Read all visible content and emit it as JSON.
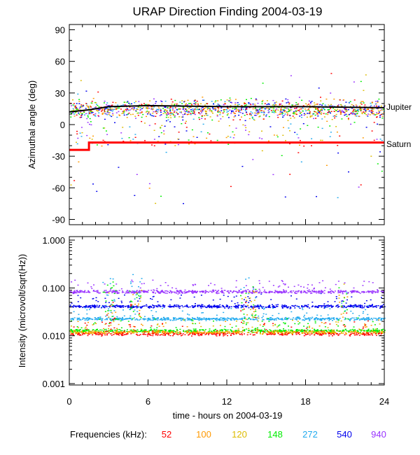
{
  "title": "URAP Direction Finding  2004-03-19",
  "xlabel": "time - hours on 2004-03-19",
  "legend_label": "Frequencies (kHz):",
  "frequencies": [
    {
      "label": "52",
      "color": "#ff0000"
    },
    {
      "label": "100",
      "color": "#ff9900"
    },
    {
      "label": "120",
      "color": "#ddbb00"
    },
    {
      "label": "148",
      "color": "#00ee00"
    },
    {
      "label": "272",
      "color": "#22aaee"
    },
    {
      "label": "540",
      "color": "#0000ee"
    },
    {
      "label": "940",
      "color": "#9933ff"
    }
  ],
  "chart_data": [
    {
      "type": "scatter",
      "ylabel": "Azimuthal angle (deg)",
      "xlim": [
        0,
        24
      ],
      "ylim": [
        -95,
        95
      ],
      "xticks": [
        0,
        6,
        12,
        18,
        24
      ],
      "yticks": [
        90,
        60,
        30,
        0,
        -30,
        -60,
        -90
      ],
      "series": [
        {
          "name": "Jupiter",
          "color": "#000000",
          "type": "line",
          "x": [
            0,
            1.5,
            3,
            6,
            12,
            18,
            24
          ],
          "y": [
            12,
            14,
            17,
            18,
            17,
            17,
            16
          ]
        },
        {
          "name": "Saturn",
          "color": "#ff0000",
          "type": "step",
          "x": [
            0,
            1.5,
            1.5,
            24
          ],
          "y": [
            -24,
            -24,
            -17,
            -17
          ]
        }
      ],
      "scatter_note_values_deg": {
        "main_band_center": 15,
        "main_band_halfwidth": 12
      }
    },
    {
      "type": "scatter",
      "ylabel": "Intensity (microvolt/sqrt(Hz))",
      "xlim": [
        0,
        24
      ],
      "ylim": [
        0.001,
        1.0
      ],
      "yscale": "log",
      "xticks": [
        0,
        6,
        12,
        18,
        24
      ],
      "yticks": [
        "0.001",
        "0.010",
        "0.100",
        "1.000"
      ],
      "series": [
        {
          "name": "940",
          "color": "#9933ff",
          "baseline": 0.085
        },
        {
          "name": "540",
          "color": "#0000ee",
          "baseline": 0.042
        },
        {
          "name": "272",
          "color": "#22aaee",
          "baseline": 0.023
        },
        {
          "name": "148",
          "color": "#00ee00",
          "baseline": 0.013
        },
        {
          "name": "120",
          "color": "#ddbb00",
          "baseline": 0.012
        },
        {
          "name": "100",
          "color": "#ff9900",
          "baseline": 0.012
        },
        {
          "name": "52",
          "color": "#ff0000",
          "baseline": 0.011
        }
      ]
    }
  ]
}
